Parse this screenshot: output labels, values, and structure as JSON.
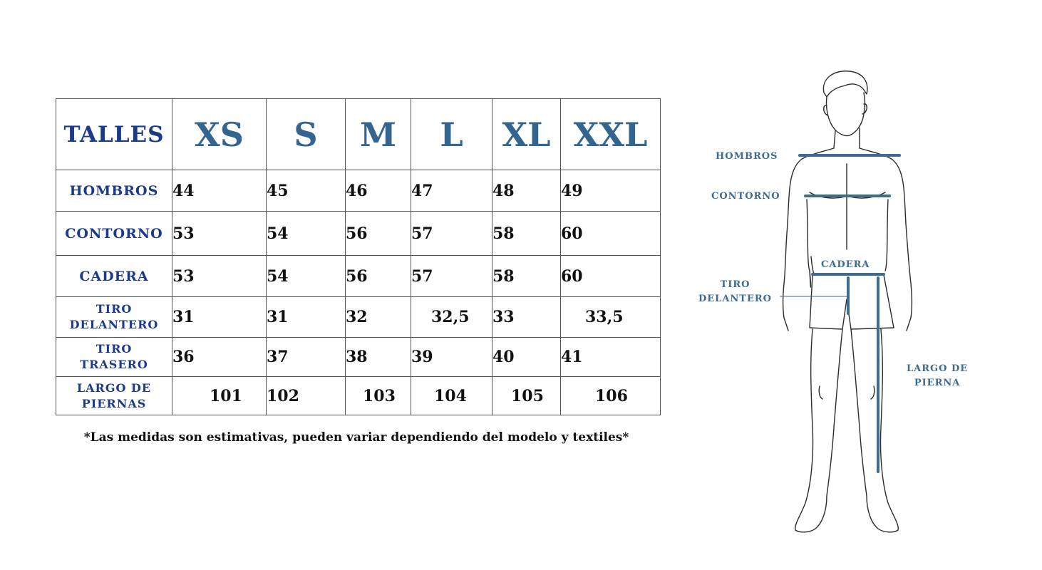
{
  "table": {
    "header_label": "TALLES",
    "sizes": [
      "XS",
      "S",
      "M",
      "L",
      "XL",
      "XXL"
    ],
    "rows": [
      {
        "label": "HOMBROS",
        "values": [
          "44",
          "45",
          "46",
          "47",
          "48",
          "49"
        ]
      },
      {
        "label": "CONTORNO",
        "values": [
          "53",
          "54",
          "56",
          "57",
          "58",
          "60"
        ]
      },
      {
        "label": "CADERA",
        "values": [
          "53",
          "54",
          "56",
          "57",
          "58",
          "60"
        ]
      },
      {
        "label": "TIRO DELANTERO",
        "label_line1": "TIRO",
        "label_line2": "DELANTERO",
        "values": [
          "31",
          "31",
          "32",
          "32,5",
          "33",
          "33,5"
        ]
      },
      {
        "label": "TIRO TRASERO",
        "label_line1": "TIRO",
        "label_line2": "TRASERO",
        "values": [
          "36",
          "37",
          "38",
          "39",
          "40",
          "41"
        ]
      },
      {
        "label": "LARGO DE PIERNAS",
        "label_line1": "LARGO DE",
        "label_line2": "PIERNAS",
        "values": [
          "101",
          "102",
          "103",
          "104",
          "105",
          "106"
        ]
      }
    ]
  },
  "footnote": "*Las medidas son estimativas, pueden variar dependiendo del modelo y textiles*",
  "figure": {
    "labels": {
      "hombros": "HOMBROS",
      "contorno": "CONTORNO",
      "cadera": "CADERA",
      "tiro_line1": "TIRO",
      "tiro_line2": "DELANTERO",
      "largo_line1": "LARGO DE",
      "largo_line2": "PIERNA"
    }
  },
  "colors": {
    "label_blue": "#1b3a8a",
    "size_blue": "#33658f",
    "measure_blue": "#3d6b92"
  }
}
